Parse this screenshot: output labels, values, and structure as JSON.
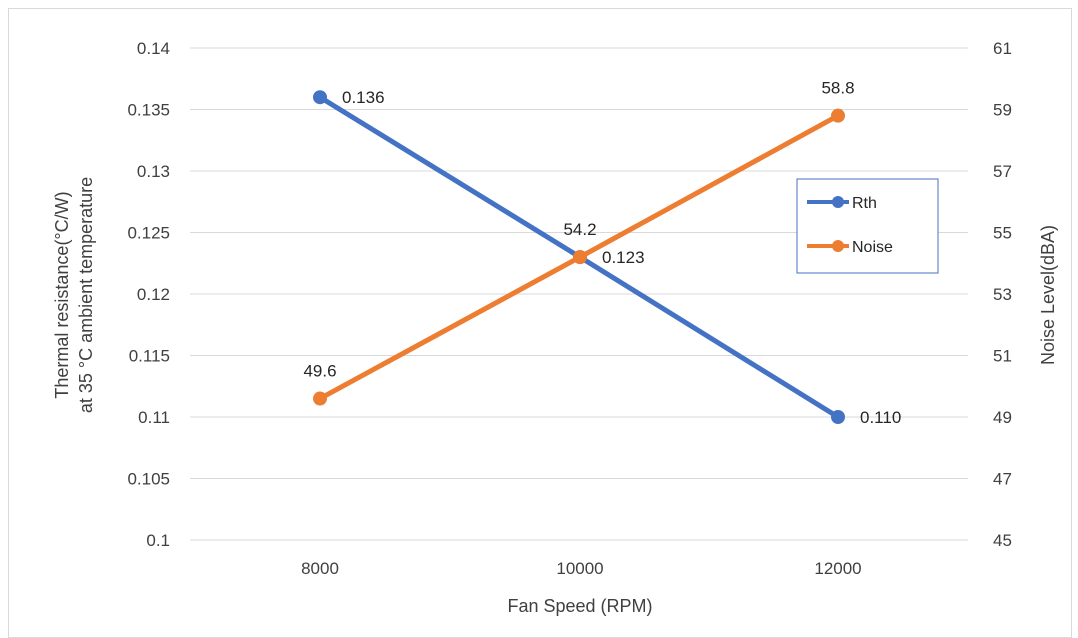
{
  "chart_data": {
    "type": "line",
    "x": [
      8000,
      10000,
      12000
    ],
    "categories": [
      "8000",
      "10000",
      "12000"
    ],
    "xlabel": "Fan Speed (RPM)",
    "ylabel_line1": "Thermal resistance(°C/W)",
    "ylabel_line2": "at 35 °C ambient temperature",
    "y2label": "Noise Level(dBA)",
    "ylim": [
      0.1,
      0.14
    ],
    "y_ticks": [
      "0.1",
      "0.105",
      "0.11",
      "0.115",
      "0.12",
      "0.125",
      "0.13",
      "0.135",
      "0.14"
    ],
    "y2lim": [
      45,
      61
    ],
    "y2_ticks": [
      "45",
      "47",
      "49",
      "51",
      "53",
      "55",
      "57",
      "59",
      "61"
    ],
    "grid": true,
    "legend_position": "right",
    "series": [
      {
        "name": "Rth",
        "axis": "left",
        "color": "#4472C4",
        "values": [
          0.136,
          0.123,
          0.11
        ],
        "labels": [
          "0.136",
          "0.123",
          "0.110"
        ]
      },
      {
        "name": "Noise",
        "axis": "right",
        "color": "#ED7D31",
        "values": [
          49.6,
          54.2,
          58.8
        ],
        "labels": [
          "49.6",
          "54.2",
          "58.8"
        ]
      }
    ]
  }
}
